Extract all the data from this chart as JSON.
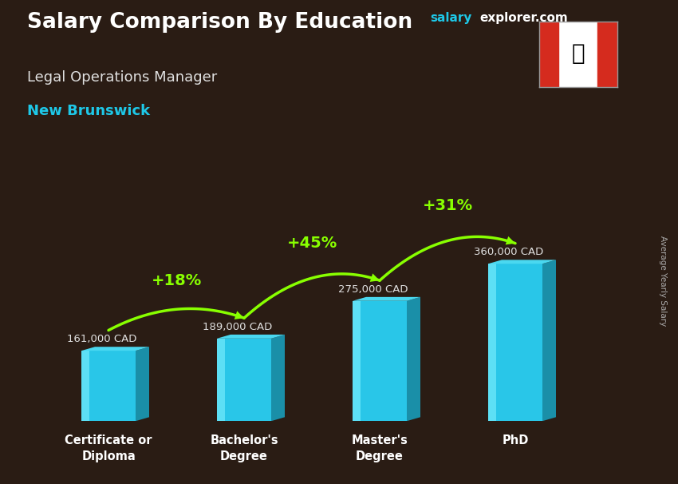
{
  "title_salary": "Salary Comparison By Education",
  "subtitle_job": "Legal Operations Manager",
  "subtitle_location": "New Brunswick",
  "watermark_salary": "salary",
  "watermark_explorer": "explorer.com",
  "ylabel": "Average Yearly Salary",
  "categories": [
    "Certificate or\nDiploma",
    "Bachelor's\nDegree",
    "Master's\nDegree",
    "PhD"
  ],
  "values": [
    161000,
    189000,
    275000,
    360000
  ],
  "value_labels": [
    "161,000 CAD",
    "189,000 CAD",
    "275,000 CAD",
    "360,000 CAD"
  ],
  "pct_labels": [
    "+18%",
    "+45%",
    "+31%"
  ],
  "bar_face_color": "#29c6e8",
  "bar_left_color": "#5ddff5",
  "bar_right_color": "#1a8fa8",
  "bar_top_color": "#4ad8f0",
  "bg_color": "#2a1c14",
  "title_color": "#ffffff",
  "subtitle_job_color": "#e0e0e0",
  "subtitle_loc_color": "#1ec8e8",
  "value_label_color": "#e0e0e0",
  "pct_color": "#88ff00",
  "arrow_color": "#88ff00",
  "watermark_salary_color": "#1ec8e8",
  "watermark_explorer_color": "#ffffff",
  "right_label_color": "#aaaaaa"
}
